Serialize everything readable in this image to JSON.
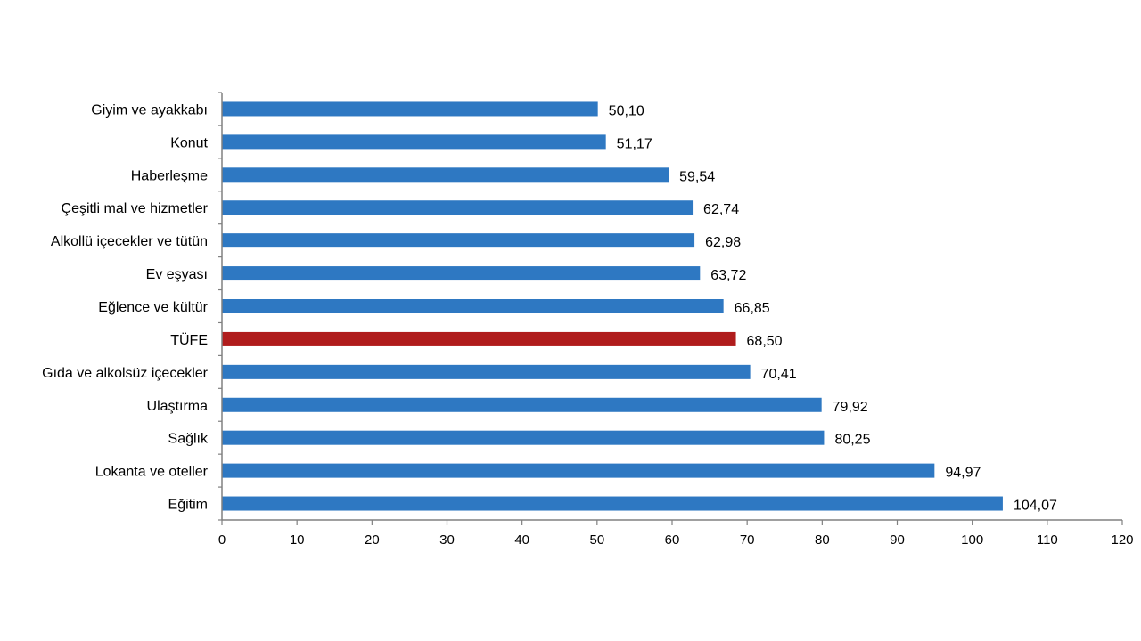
{
  "chart_data": {
    "type": "bar",
    "orientation": "horizontal",
    "title": "",
    "xlabel": "",
    "ylabel": "",
    "xlim": [
      0,
      120
    ],
    "x_ticks": [
      "0",
      "10",
      "20",
      "30",
      "40",
      "50",
      "60",
      "70",
      "80",
      "90",
      "100",
      "110",
      "120"
    ],
    "grid": false,
    "legend": "none",
    "categories": [
      "Giyim ve ayakkabı",
      "Konut",
      "Haberleşme",
      "Çeşitli mal ve hizmetler",
      "Alkollü içecekler ve tütün",
      "Ev eşyası",
      "Eğlence ve kültür",
      "TÜFE",
      "Gıda ve alkolsüz içecekler",
      "Ulaştırma",
      "Sağlık",
      "Lokanta ve oteller",
      "Eğitim"
    ],
    "values": [
      50.1,
      51.17,
      59.54,
      62.74,
      62.98,
      63.72,
      66.85,
      68.5,
      70.41,
      79.92,
      80.25,
      94.97,
      104.07
    ],
    "value_labels": [
      "50,10",
      "51,17",
      "59,54",
      "62,74",
      "62,98",
      "63,72",
      "66,85",
      "68,50",
      "70,41",
      "79,92",
      "80,25",
      "94,97",
      "104,07"
    ],
    "bar_color": "#2e78c2",
    "highlight_category": "TÜFE",
    "highlight_color": "#b01c1c",
    "axis_color": "#808080"
  }
}
